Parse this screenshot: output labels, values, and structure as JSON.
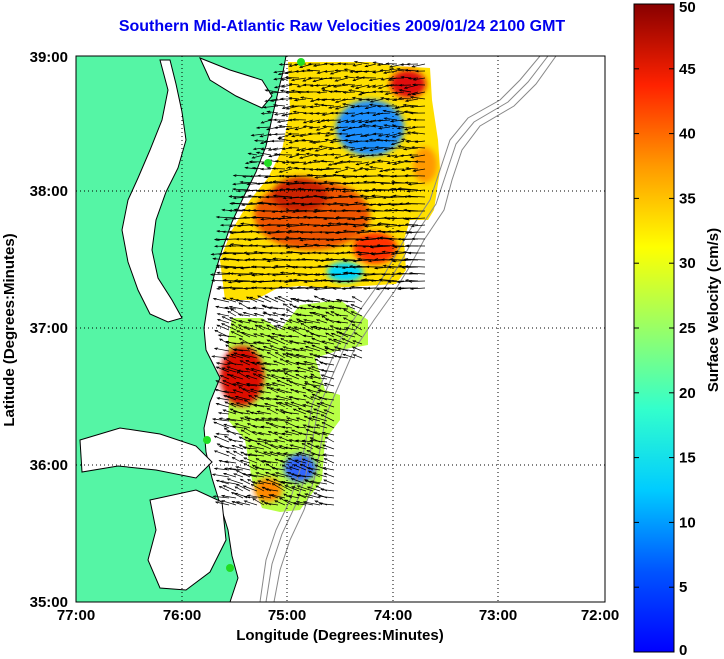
{
  "title": "Southern Mid-Atlantic Raw Velocities 2009/01/24 2100 GMT",
  "map": {
    "xlabel": "Longitude (Degrees:Minutes)",
    "ylabel": "Latitude (Degrees:Minutes)",
    "lon_range": [
      -77,
      -72
    ],
    "lat_range": [
      35,
      39
    ],
    "lon_ticks": [
      "77:00",
      "76:00",
      "75:00",
      "74:00",
      "73:00",
      "72:00"
    ],
    "lat_ticks": [
      "35:00",
      "36:00",
      "37:00",
      "38:00",
      "39:00"
    ],
    "grid": "dotted",
    "land_color": "#55f5a5",
    "ocean_color": "#ffffff",
    "station_color": "#22dd22"
  },
  "colorbar": {
    "label": "Surface Velocity (cm/s)",
    "min": 0,
    "max": 50,
    "ticks": [
      "0",
      "5",
      "10",
      "15",
      "20",
      "25",
      "30",
      "35",
      "40",
      "45",
      "50"
    ],
    "colormap": "jet"
  }
}
